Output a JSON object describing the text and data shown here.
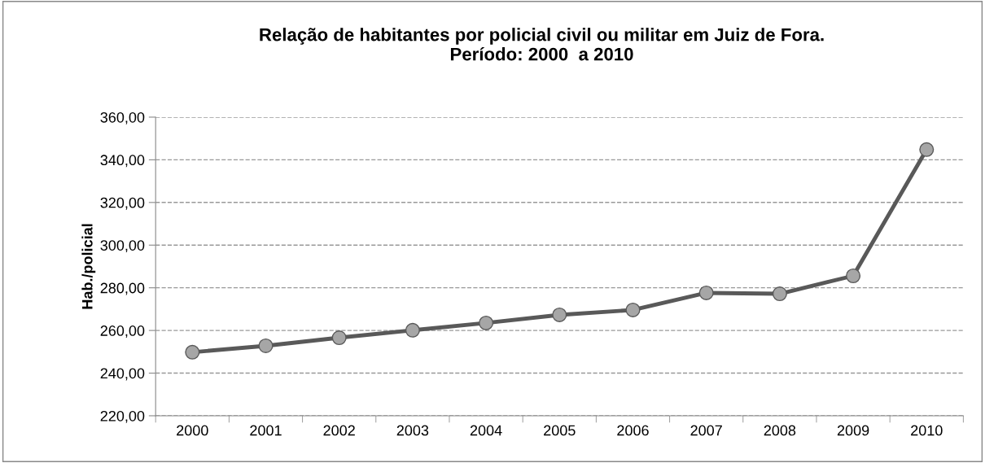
{
  "chart_data": {
    "type": "line",
    "title": "Relação de habitantes por policial civil ou militar em Juiz de Fora.\nPeríodo: 2000  a 2010",
    "ylabel": "Hab./policial",
    "categories": [
      "2000",
      "2001",
      "2002",
      "2003",
      "2004",
      "2005",
      "2006",
      "2007",
      "2008",
      "2009",
      "2010"
    ],
    "series": [
      {
        "color": "#595959",
        "values": [
          249.8,
          252.8,
          256.6,
          260.1,
          263.5,
          267.3,
          269.6,
          277.6,
          277.2,
          285.6,
          344.8
        ]
      }
    ],
    "ylim": [
      220,
      360
    ],
    "yticks": [
      {
        "value": 220,
        "label": "220,00"
      },
      {
        "value": 240,
        "label": "240,00"
      },
      {
        "value": 260,
        "label": "260,00"
      },
      {
        "value": 280,
        "label": "280,00"
      },
      {
        "value": 300,
        "label": "300,00"
      },
      {
        "value": 320,
        "label": "320,00"
      },
      {
        "value": 340,
        "label": "340,00"
      },
      {
        "value": 360,
        "label": "360,00"
      }
    ],
    "grid": "y",
    "marker": "circle",
    "line_style": "solid",
    "legend": false
  }
}
